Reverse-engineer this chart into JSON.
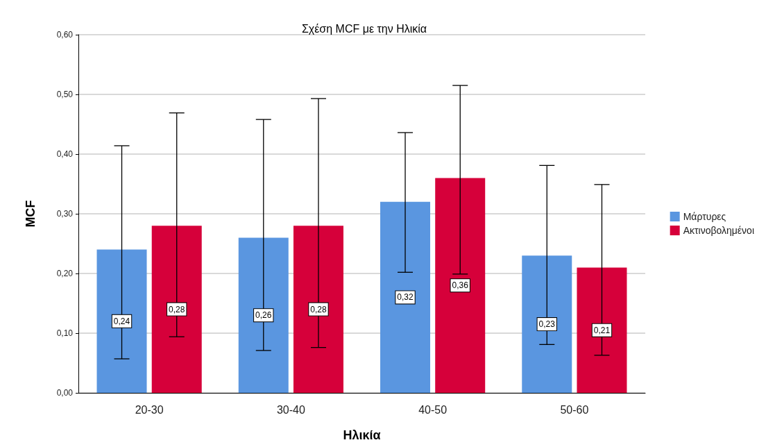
{
  "chart_data": {
    "type": "bar",
    "title": "Σχέση MCF με την Ηλικία",
    "xlabel": "Ηλικία",
    "ylabel": "MCF",
    "categories": [
      "20-30",
      "30-40",
      "40-50",
      "50-60"
    ],
    "series": [
      {
        "name": "Μάρτυρες",
        "color": "#5a96e0",
        "values": [
          0.24,
          0.26,
          0.32,
          0.23
        ],
        "value_labels": [
          "0,24",
          "0,26",
          "0,32",
          "0,23"
        ],
        "errors": [
          [
            0.057,
            0.414
          ],
          [
            0.071,
            0.458
          ],
          [
            0.202,
            0.436
          ],
          [
            0.081,
            0.381
          ]
        ]
      },
      {
        "name": "Ακτινοβολημένοι",
        "color": "#d6003a",
        "values": [
          0.28,
          0.28,
          0.36,
          0.21
        ],
        "value_labels": [
          "0,28",
          "0,28",
          "0,36",
          "0,21"
        ],
        "errors": [
          [
            0.094,
            0.469
          ],
          [
            0.076,
            0.493
          ],
          [
            0.199,
            0.515
          ],
          [
            0.063,
            0.349
          ]
        ]
      }
    ],
    "ylim": [
      0,
      0.6
    ],
    "yticks": [
      {
        "value": 0,
        "label": "0,00"
      },
      {
        "value": 0.1,
        "label": "0,10"
      },
      {
        "value": 0.2,
        "label": "0,20"
      },
      {
        "value": 0.3,
        "label": "0,30"
      },
      {
        "value": 0.4,
        "label": "0,40"
      },
      {
        "value": 0.5,
        "label": "0,50"
      },
      {
        "value": 0.6,
        "label": "0,60"
      }
    ],
    "grid": "y",
    "legend": "right"
  }
}
